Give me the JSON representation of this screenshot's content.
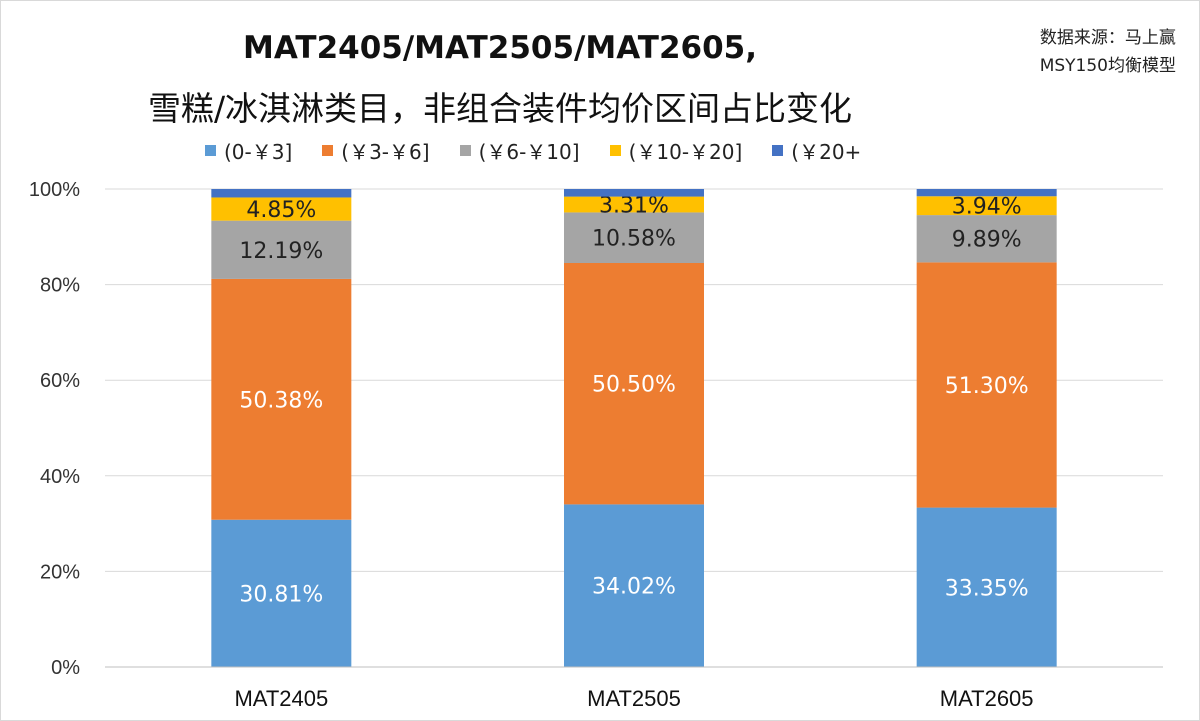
{
  "source_lines": [
    "数据来源：马上赢",
    "MSY150均衡模型"
  ],
  "title_lines": [
    "MAT2405/MAT2505/MAT2605,",
    "雪糕/冰淇淋类目，非组合装件均价区间占比变化"
  ],
  "chart_data": {
    "type": "bar",
    "stacked": true,
    "percent": true,
    "categories": [
      "MAT2405",
      "MAT2505",
      "MAT2605"
    ],
    "series": [
      {
        "name": "(0-￥3]",
        "color": "#5b9bd5",
        "label_color": "#ffffff",
        "values": [
          30.81,
          34.02,
          33.35
        ],
        "labels": [
          "30.81%",
          "34.02%",
          "33.35%"
        ]
      },
      {
        "name": "(￥3-￥6]",
        "color": "#ed7d31",
        "label_color": "#ffffff",
        "values": [
          50.38,
          50.5,
          51.3
        ],
        "labels": [
          "50.38%",
          "50.50%",
          "51.30%"
        ]
      },
      {
        "name": "(￥6-￥10]",
        "color": "#a5a5a5",
        "label_color": "#222222",
        "values": [
          12.19,
          10.58,
          9.89
        ],
        "labels": [
          "12.19%",
          "10.58%",
          "9.89%"
        ]
      },
      {
        "name": "(￥10-￥20]",
        "color": "#ffc000",
        "label_color": "#222222",
        "values": [
          4.85,
          3.31,
          3.94
        ],
        "labels": [
          "4.85%",
          "3.31%",
          "3.94%"
        ]
      },
      {
        "name": "(￥20+",
        "color": "#4472c4",
        "label_color": "#ffffff",
        "values": [
          1.77,
          1.59,
          1.52
        ],
        "labels": [
          "",
          "",
          ""
        ]
      }
    ],
    "ylim": [
      0,
      100
    ],
    "yticks": [
      0,
      20,
      40,
      60,
      80,
      100
    ],
    "ytick_labels": [
      "0%",
      "20%",
      "40%",
      "60%",
      "80%",
      "100%"
    ],
    "grid": true,
    "legend_position": "top",
    "xlabel": "",
    "ylabel": ""
  }
}
